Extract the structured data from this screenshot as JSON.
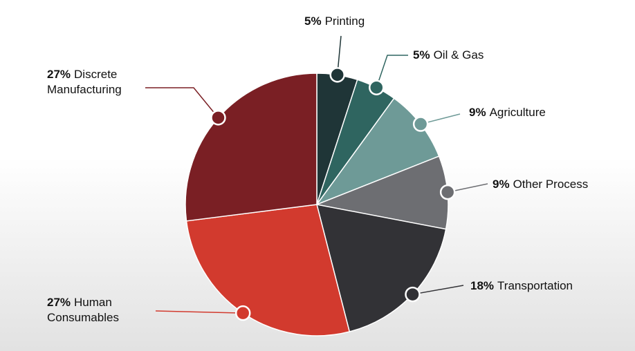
{
  "chart_data": {
    "type": "pie",
    "categories": [
      "Printing",
      "Oil & Gas",
      "Agriculture",
      "Other Process",
      "Transportation",
      "Human Consumables",
      "Discrete Manufacturing"
    ],
    "values": [
      5,
      5,
      9,
      9,
      18,
      27,
      27
    ],
    "value_labels": [
      "5%",
      "5%",
      "9%",
      "9%",
      "18%",
      "27%",
      "27%"
    ],
    "colors": [
      "#1f3537",
      "#2f6560",
      "#6e9a97",
      "#6d6e72",
      "#323236",
      "#d23a2e",
      "#7a1f24"
    ]
  }
}
